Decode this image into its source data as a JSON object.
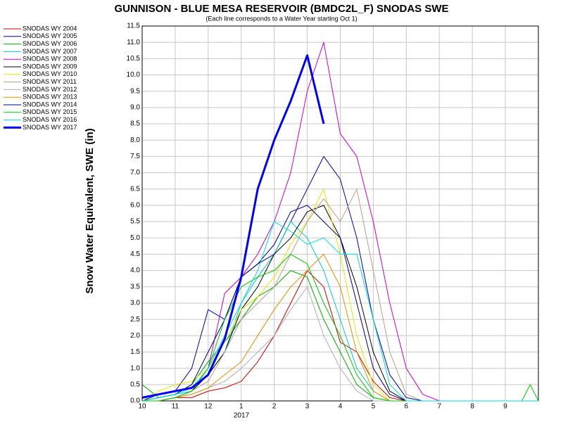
{
  "chart_data": {
    "type": "line",
    "title": "GUNNISON - BLUE MESA RESERVOIR (BMDC2L_F) SNODAS SWE",
    "subtitle": "(Each line corresponds to a Water Year starting Oct 1)",
    "y_label": "Snow Water Equivalent, SWE (in)",
    "annotation": "2017",
    "x": [
      0,
      0.5,
      1,
      1.5,
      2,
      2.5,
      3,
      3.5,
      4,
      4.5,
      5,
      5.5,
      6,
      6.5,
      7,
      7.5,
      8,
      8.5,
      9,
      11.5,
      11.75,
      12
    ],
    "xlim": [
      0,
      12
    ],
    "xticks": [
      {
        "value": 0,
        "label": "10"
      },
      {
        "value": 1,
        "label": "11"
      },
      {
        "value": 2,
        "label": "12"
      },
      {
        "value": 3,
        "label": "1"
      },
      {
        "value": 4,
        "label": "2"
      },
      {
        "value": 5,
        "label": "3"
      },
      {
        "value": 6,
        "label": "4"
      },
      {
        "value": 7,
        "label": "5"
      },
      {
        "value": 8,
        "label": "6"
      },
      {
        "value": 9,
        "label": "7"
      },
      {
        "value": 10,
        "label": "8"
      },
      {
        "value": 11,
        "label": "9"
      }
    ],
    "ylim": [
      0,
      11.5
    ],
    "yticks": [
      {
        "value": 0,
        "label": "0.0"
      },
      0.5,
      {
        "value": 1,
        "label": "1.0"
      },
      1.5,
      {
        "value": 2,
        "label": "2.0"
      },
      2.5,
      {
        "value": 3,
        "label": "3.0"
      },
      3.5,
      {
        "value": 4,
        "label": "4.0"
      },
      4.5,
      {
        "value": 5,
        "label": "5.0"
      },
      5.5,
      {
        "value": 6,
        "label": "6.0"
      },
      6.5,
      {
        "value": 7,
        "label": "7.0"
      },
      7.5,
      {
        "value": 8,
        "label": "8.0"
      },
      8.5,
      {
        "value": 9,
        "label": "9.0"
      },
      9.5,
      {
        "value": 10,
        "label": "10.0"
      },
      10.5,
      {
        "value": 11,
        "label": "11.0"
      },
      11.5
    ],
    "grid": true,
    "series": [
      {
        "name": "SNODAS WY 2004",
        "color": "#cc0000",
        "values": [
          0,
          0,
          0.1,
          0.1,
          0.3,
          0.4,
          0.6,
          1.2,
          2.0,
          3.0,
          4.0,
          3.5,
          1.8,
          1.5,
          0.6,
          0.1,
          0,
          0,
          0,
          0,
          0,
          0
        ]
      },
      {
        "name": "SNODAS WY 2005",
        "color": "#0000aa",
        "values": [
          0,
          0.2,
          0.3,
          1.0,
          2.8,
          2.5,
          3.8,
          4.2,
          4.5,
          5.5,
          6.5,
          7.5,
          6.8,
          5.0,
          2.5,
          0.8,
          0.1,
          0,
          0,
          0,
          0,
          0
        ]
      },
      {
        "name": "SNODAS WY 2006",
        "color": "#00aa00",
        "values": [
          0.5,
          0.1,
          0.2,
          0.5,
          1.2,
          1.8,
          2.5,
          3.2,
          3.5,
          4.0,
          3.8,
          2.5,
          1.5,
          0.5,
          0.1,
          0,
          0,
          0,
          0,
          0,
          0,
          0
        ]
      },
      {
        "name": "SNODAS WY 2007",
        "color": "#00cccc",
        "values": [
          0,
          0.1,
          0.2,
          0.3,
          0.8,
          1.5,
          3.0,
          3.8,
          4.5,
          5.5,
          5.0,
          4.0,
          2.5,
          1.0,
          0.3,
          0,
          0,
          0,
          0,
          0,
          0,
          0
        ]
      },
      {
        "name": "SNODAS WY 2008",
        "color": "#cc00cc",
        "values": [
          0,
          0,
          0.1,
          0.3,
          1.0,
          3.3,
          3.8,
          4.5,
          5.5,
          7.0,
          9.5,
          11.0,
          8.2,
          7.5,
          5.5,
          3.0,
          1.0,
          0.2,
          0,
          0,
          0,
          0
        ]
      },
      {
        "name": "SNODAS WY 2009",
        "color": "#000000",
        "values": [
          0,
          0,
          0.1,
          0.3,
          0.8,
          1.5,
          2.8,
          3.5,
          4.5,
          5.0,
          5.8,
          6.0,
          5.0,
          3.5,
          1.5,
          0.3,
          0,
          0,
          0,
          0,
          0,
          0
        ]
      },
      {
        "name": "SNODAS WY 2010",
        "color": "#e6e600",
        "values": [
          0,
          0.3,
          0.5,
          0.6,
          1.0,
          1.8,
          2.8,
          3.2,
          3.8,
          4.8,
          5.5,
          6.5,
          4.5,
          2.0,
          0.5,
          0,
          0,
          0,
          0,
          0,
          0,
          0
        ]
      },
      {
        "name": "SNODAS WY 2011",
        "color": "#b8a088",
        "values": [
          0,
          0,
          0.1,
          0.3,
          0.6,
          1.5,
          2.5,
          3.0,
          3.5,
          4.5,
          5.5,
          6.2,
          5.5,
          6.5,
          4.0,
          1.5,
          0.2,
          0,
          0,
          0,
          0,
          0
        ]
      },
      {
        "name": "SNODAS WY 2012",
        "color": "#b0b0b0",
        "values": [
          0,
          0,
          0.1,
          0.2,
          0.4,
          0.6,
          1.0,
          1.5,
          2.0,
          2.8,
          3.5,
          2.0,
          1.0,
          0.3,
          0,
          0,
          0,
          0,
          0,
          0,
          0,
          0
        ]
      },
      {
        "name": "SNODAS WY 2013",
        "color": "#e09000",
        "values": [
          0,
          0,
          0.1,
          0.2,
          0.4,
          0.8,
          1.2,
          2.0,
          2.8,
          3.5,
          4.0,
          4.5,
          3.5,
          1.5,
          0.3,
          0,
          0,
          0,
          0,
          0,
          0,
          0
        ]
      },
      {
        "name": "SNODAS WY 2014",
        "color": "#000080",
        "values": [
          0,
          0.1,
          0.2,
          0.5,
          1.5,
          2.5,
          3.8,
          4.2,
          4.8,
          5.8,
          6.0,
          5.5,
          5.0,
          3.0,
          1.0,
          0.2,
          0,
          0,
          0,
          0,
          0,
          0
        ]
      },
      {
        "name": "SNODAS WY 2015",
        "color": "#00cc00",
        "values": [
          0,
          0,
          0.1,
          0.3,
          1.0,
          2.5,
          3.5,
          3.8,
          4.0,
          4.5,
          4.2,
          3.0,
          2.0,
          0.8,
          0.1,
          0,
          0,
          0,
          0,
          0,
          0.5,
          0
        ]
      },
      {
        "name": "SNODAS WY 2016",
        "color": "#00dddd",
        "values": [
          0,
          0.1,
          0.2,
          0.4,
          1.0,
          2.0,
          3.0,
          4.0,
          5.5,
          5.2,
          4.8,
          5.0,
          4.5,
          4.5,
          2.5,
          0.5,
          0,
          0,
          0,
          0,
          0,
          0
        ]
      },
      {
        "name": "SNODAS WY 2017",
        "color": "#0000ff",
        "width": 3,
        "values": [
          0.1,
          0.2,
          0.3,
          0.4,
          0.8,
          1.9,
          3.8,
          6.5,
          8.0,
          9.2,
          10.6,
          8.5,
          null,
          null,
          null,
          null,
          null,
          null,
          null,
          null,
          null,
          null
        ]
      }
    ]
  }
}
